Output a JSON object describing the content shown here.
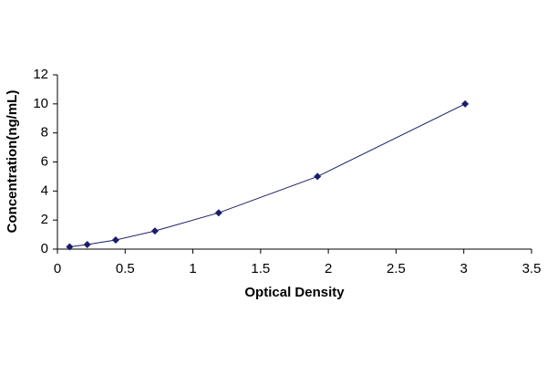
{
  "chart_data": {
    "type": "line",
    "x_label": "Optical Density",
    "y_label": "Concentration(ng/mL)",
    "series": [
      {
        "x": [
          0.09,
          0.22,
          0.43,
          0.72,
          1.19,
          1.92,
          3.01
        ],
        "values": [
          0.156,
          0.312,
          0.625,
          1.25,
          2.5,
          5,
          10
        ],
        "color": "#1c1c6b"
      }
    ],
    "xlim": [
      0,
      3.5
    ],
    "xticks": [
      0,
      0.5,
      1,
      1.5,
      2,
      2.5,
      3,
      3.5
    ],
    "ylim": [
      0,
      12
    ],
    "yticks": [
      0,
      2,
      4,
      6,
      8,
      10,
      12
    ],
    "grid": false
  }
}
